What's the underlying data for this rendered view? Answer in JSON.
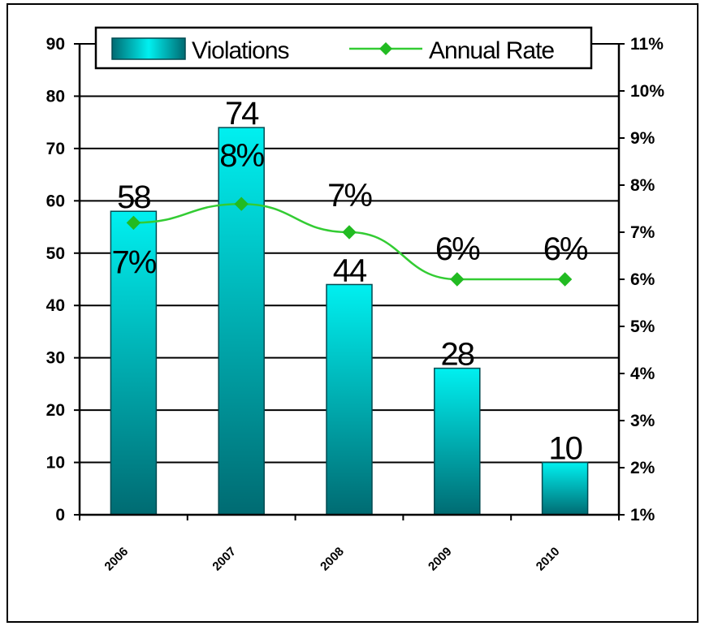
{
  "chart_data": {
    "type": "bar",
    "categories": [
      "2006",
      "2007",
      "2008",
      "2009",
      "2010"
    ],
    "series": [
      {
        "name": "Violations",
        "type": "bar",
        "axis": "left",
        "values": [
          58,
          74,
          44,
          28,
          10
        ],
        "data_labels": [
          "58",
          "74",
          "44",
          "28",
          "10"
        ]
      },
      {
        "name": "Annual Rate",
        "type": "line",
        "axis": "right",
        "values": [
          7.2,
          7.6,
          7.0,
          6.0,
          6.0
        ],
        "data_labels": [
          "7%",
          "8%",
          "7%",
          "6%",
          "6%"
        ]
      }
    ],
    "y_left": {
      "ylim": [
        0,
        90
      ],
      "ticks": [
        "0",
        "10",
        "20",
        "30",
        "40",
        "50",
        "60",
        "70",
        "80",
        "90"
      ]
    },
    "y_right": {
      "ylim": [
        1,
        11
      ],
      "ticks": [
        "1%",
        "2%",
        "3%",
        "4%",
        "5%",
        "6%",
        "7%",
        "8%",
        "9%",
        "10%",
        "11%"
      ]
    },
    "grid": true,
    "legend_position": "top",
    "colors": {
      "bar_top": "#00f0f0",
      "bar_bottom": "#006b72",
      "bar_edge": "#004a50",
      "line": "#33cc33",
      "marker": "#22bb22",
      "grid": "#000000"
    }
  }
}
